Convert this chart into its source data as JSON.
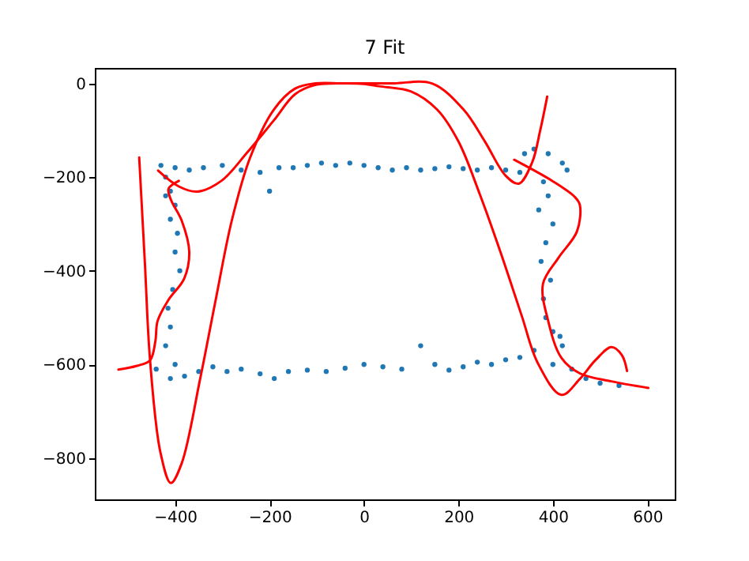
{
  "chart_data": {
    "type": "scatter",
    "title": "7 Fit",
    "xlim": [
      -570,
      658
    ],
    "ylim": [
      -888,
      33
    ],
    "xticks": [
      -400,
      -200,
      0,
      200,
      400,
      600
    ],
    "yticks": [
      -800,
      -600,
      -400,
      -200,
      0
    ],
    "series": [
      {
        "type": "scatter",
        "color": "#1f77b4",
        "x": [
          -430,
          -400,
          -370,
          -340,
          -300,
          -260,
          -220,
          -200,
          -180,
          -150,
          -120,
          -90,
          -60,
          -30,
          0,
          30,
          60,
          90,
          120,
          150,
          180,
          210,
          240,
          270,
          300,
          330,
          340,
          360,
          390,
          420,
          430,
          -420,
          -410,
          -420,
          -400,
          -410,
          -395,
          -400,
          -390,
          -405,
          -415,
          -410,
          -420,
          -400,
          -440,
          -410,
          -380,
          -350,
          -320,
          -290,
          -260,
          -220,
          -190,
          -160,
          -120,
          -80,
          -40,
          0,
          40,
          80,
          120,
          150,
          180,
          210,
          240,
          270,
          300,
          330,
          360,
          400,
          440,
          470,
          500,
          540,
          380,
          390,
          370,
          400,
          385,
          375,
          395,
          380,
          385,
          400,
          415,
          420
        ],
        "values": [
          -175,
          -180,
          -185,
          -180,
          -175,
          -185,
          -190,
          -230,
          -180,
          -180,
          -175,
          -170,
          -175,
          -170,
          -175,
          -180,
          -185,
          -180,
          -185,
          -182,
          -178,
          -182,
          -185,
          -180,
          -185,
          -190,
          -150,
          -140,
          -150,
          -170,
          -185,
          -200,
          -230,
          -240,
          -260,
          -290,
          -320,
          -360,
          -400,
          -440,
          -480,
          -520,
          -560,
          -600,
          -610,
          -630,
          -625,
          -615,
          -605,
          -615,
          -610,
          -620,
          -630,
          -615,
          -612,
          -615,
          -608,
          -600,
          -605,
          -610,
          -560,
          -600,
          -612,
          -605,
          -595,
          -600,
          -590,
          -585,
          -570,
          -600,
          -610,
          -630,
          -640,
          -645,
          -210,
          -240,
          -270,
          -300,
          -340,
          -380,
          -420,
          -460,
          -500,
          -530,
          -540,
          -560
        ]
      },
      {
        "type": "line",
        "color": "#ff0000",
        "x": [
          -476,
          -464,
          -453,
          -431,
          -409,
          -386,
          -347,
          -314,
          -280,
          -241,
          -191,
          -146,
          -102,
          -50,
          0,
          32,
          99,
          155,
          200,
          245,
          289,
          334,
          368,
          418,
          457,
          490,
          524,
          546,
          557
        ],
        "values": [
          -158,
          -383,
          -591,
          -788,
          -853,
          -811,
          -631,
          -462,
          -293,
          -158,
          -56,
          -11,
          0,
          0,
          -1,
          -6,
          -17,
          -56,
          -124,
          -236,
          -360,
          -496,
          -597,
          -665,
          -631,
          -591,
          -563,
          -580,
          -614
        ]
      },
      {
        "type": "line",
        "color": "#ff0000",
        "x": [
          -436,
          -392,
          -353,
          -302,
          -247,
          -191,
          -146,
          -102,
          -23,
          60,
          144,
          211,
          256,
          300,
          328,
          356,
          373,
          388
        ],
        "values": [
          -186,
          -220,
          -231,
          -208,
          -147,
          -79,
          -23,
          -3,
          0,
          0,
          0,
          -56,
          -124,
          -197,
          -214,
          -169,
          -101,
          -28
        ]
      },
      {
        "type": "line",
        "color": "#ff0000",
        "x": [
          -520,
          -481,
          -453,
          -442,
          -437,
          -414,
          -381,
          -370,
          -386,
          -409,
          -414,
          -392
        ],
        "values": [
          -611,
          -603,
          -591,
          -552,
          -507,
          -462,
          -417,
          -360,
          -293,
          -248,
          -225,
          -208
        ]
      },
      {
        "type": "line",
        "color": "#ff0000",
        "x": [
          318,
          400,
          446,
          457,
          451,
          412,
          379,
          390,
          418,
          457,
          524,
          602
        ],
        "values": [
          -163,
          -209,
          -242,
          -259,
          -316,
          -372,
          -428,
          -507,
          -586,
          -619,
          -636,
          -650
        ]
      }
    ]
  }
}
